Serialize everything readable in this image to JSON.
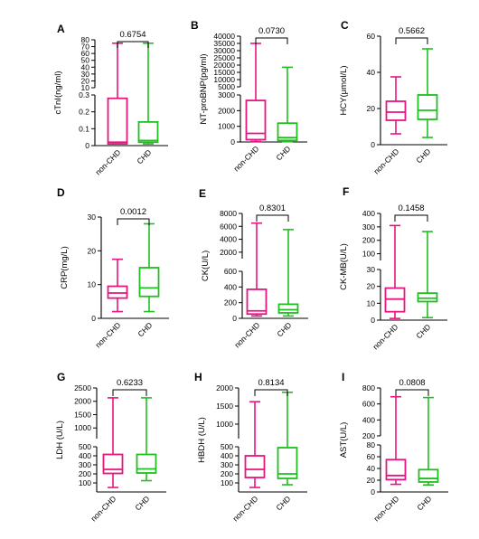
{
  "chart_data": [
    {
      "panel": "A",
      "type": "boxplot",
      "ylabel": "cTnI(ng/ml)",
      "p_value": "0.6754",
      "categories": [
        "non-CHD",
        "CHD"
      ],
      "y_break": {
        "lower": [
          0,
          0.3
        ],
        "upper": [
          10,
          80
        ]
      },
      "yticks": [
        0,
        0.1,
        0.2,
        0.3,
        10,
        20,
        30,
        40,
        50,
        60,
        70,
        80
      ],
      "boxes": [
        {
          "category": "non-CHD",
          "color": "#e6157f",
          "min": 0.01,
          "q1": 0.01,
          "median": 0.02,
          "q3": 0.28,
          "max": 75
        },
        {
          "category": "CHD",
          "color": "#1fbf1f",
          "min": 0.01,
          "q1": 0.02,
          "median": 0.03,
          "q3": 0.14,
          "max": 75
        }
      ]
    },
    {
      "panel": "B",
      "type": "boxplot",
      "ylabel": "NT-proBNP(pg/ml)",
      "p_value": "0.0730",
      "categories": [
        "non-CHD",
        "CHD"
      ],
      "y_break": {
        "lower": [
          0,
          3000
        ],
        "upper": [
          5000,
          40000
        ]
      },
      "yticks": [
        0,
        1000,
        2000,
        3000,
        5000,
        10000,
        15000,
        20000,
        25000,
        30000,
        35000,
        40000
      ],
      "boxes": [
        {
          "category": "non-CHD",
          "color": "#e6157f",
          "min": 30,
          "q1": 150,
          "median": 550,
          "q3": 2650,
          "max": 35000
        },
        {
          "category": "CHD",
          "color": "#1fbf1f",
          "min": 20,
          "q1": 100,
          "median": 280,
          "q3": 1200,
          "max": 18500
        }
      ]
    },
    {
      "panel": "C",
      "type": "boxplot",
      "ylabel": "HCY(μmol/L)",
      "p_value": "0.5662",
      "categories": [
        "non-CHD",
        "CHD"
      ],
      "ylim": [
        0,
        60
      ],
      "yticks": [
        0,
        20,
        40,
        60
      ],
      "boxes": [
        {
          "category": "non-CHD",
          "color": "#e6157f",
          "min": 6,
          "q1": 13.5,
          "median": 18,
          "q3": 24,
          "max": 37.5
        },
        {
          "category": "CHD",
          "color": "#1fbf1f",
          "min": 4,
          "q1": 14,
          "median": 19,
          "q3": 27.5,
          "max": 53
        }
      ]
    },
    {
      "panel": "D",
      "type": "boxplot",
      "ylabel": "CRP(mg/L)",
      "p_value": "0.0012",
      "categories": [
        "non-CHD",
        "CHD"
      ],
      "ylim": [
        0,
        30
      ],
      "yticks": [
        0,
        10,
        20,
        30
      ],
      "boxes": [
        {
          "category": "non-CHD",
          "color": "#e6157f",
          "min": 2,
          "q1": 6,
          "median": 7.5,
          "q3": 9.5,
          "max": 17.5
        },
        {
          "category": "CHD",
          "color": "#1fbf1f",
          "min": 2,
          "q1": 6.5,
          "median": 9,
          "q3": 15,
          "max": 28
        }
      ]
    },
    {
      "panel": "E",
      "type": "boxplot",
      "ylabel": "CK(U/L)",
      "p_value": "0.8301",
      "categories": [
        "non-CHD",
        "CHD"
      ],
      "y_break": {
        "lower": [
          0,
          600
        ],
        "upper": [
          1000,
          8000
        ]
      },
      "yticks": [
        0,
        200,
        400,
        600,
        2000,
        4000,
        6000,
        8000
      ],
      "boxes": [
        {
          "category": "non-CHD",
          "color": "#e6157f",
          "min": 30,
          "q1": 55,
          "median": 95,
          "q3": 370,
          "max": 6500
        },
        {
          "category": "CHD",
          "color": "#1fbf1f",
          "min": 30,
          "q1": 70,
          "median": 110,
          "q3": 180,
          "max": 5500
        }
      ]
    },
    {
      "panel": "F",
      "type": "boxplot",
      "ylabel": "CK-MB(U/L)",
      "p_value": "0.1458",
      "categories": [
        "non-CHD",
        "CHD"
      ],
      "y_break": {
        "lower": [
          0,
          30
        ],
        "upper": [
          50,
          400
        ]
      },
      "yticks": [
        0,
        10,
        20,
        30,
        100,
        200,
        300,
        400
      ],
      "boxes": [
        {
          "category": "non-CHD",
          "color": "#e6157f",
          "min": 1,
          "q1": 5,
          "median": 12.5,
          "q3": 19,
          "max": 310
        },
        {
          "category": "CHD",
          "color": "#1fbf1f",
          "min": 1.5,
          "q1": 11,
          "median": 13,
          "q3": 16,
          "max": 265
        }
      ]
    },
    {
      "panel": "G",
      "type": "boxplot",
      "ylabel": "LDH (U/L)",
      "p_value": "0.6233",
      "categories": [
        "non-CHD",
        "CHD"
      ],
      "y_break": {
        "lower": [
          0,
          500
        ],
        "upper": [
          600,
          2500
        ]
      },
      "yticks": [
        100,
        200,
        300,
        400,
        500,
        1000,
        1500,
        2000,
        2500
      ],
      "boxes": [
        {
          "category": "non-CHD",
          "color": "#e6157f",
          "min": 50,
          "q1": 205,
          "median": 250,
          "q3": 415,
          "max": 2130
        },
        {
          "category": "CHD",
          "color": "#1fbf1f",
          "min": 125,
          "q1": 210,
          "median": 255,
          "q3": 415,
          "max": 2130
        }
      ]
    },
    {
      "panel": "H",
      "type": "boxplot",
      "ylabel": "HBDH (U/L)",
      "p_value": "0.8134",
      "categories": [
        "non-CHD",
        "CHD"
      ],
      "y_break": {
        "lower": [
          0,
          500
        ],
        "upper": [
          600,
          2000
        ]
      },
      "yticks": [
        100,
        200,
        300,
        400,
        500,
        1000,
        1500,
        2000
      ],
      "boxes": [
        {
          "category": "non-CHD",
          "color": "#e6157f",
          "min": 50,
          "q1": 160,
          "median": 250,
          "q3": 400,
          "max": 1620
        },
        {
          "category": "CHD",
          "color": "#1fbf1f",
          "min": 80,
          "q1": 150,
          "median": 200,
          "q3": 490,
          "max": 1880
        }
      ]
    },
    {
      "panel": "I",
      "type": "boxplot",
      "ylabel": "AST(U/L)",
      "p_value": "0.0808",
      "categories": [
        "non-CHD",
        "CHD"
      ],
      "y_break": {
        "lower": [
          0,
          80
        ],
        "upper": [
          200,
          800
        ]
      },
      "yticks": [
        0,
        20,
        40,
        60,
        80,
        200,
        400,
        600,
        800
      ],
      "boxes": [
        {
          "category": "non-CHD",
          "color": "#e6157f",
          "min": 13,
          "q1": 21,
          "median": 28,
          "q3": 55,
          "max": 690
        },
        {
          "category": "CHD",
          "color": "#1fbf1f",
          "min": 12,
          "q1": 17,
          "median": 23,
          "q3": 38,
          "max": 680
        }
      ]
    }
  ]
}
